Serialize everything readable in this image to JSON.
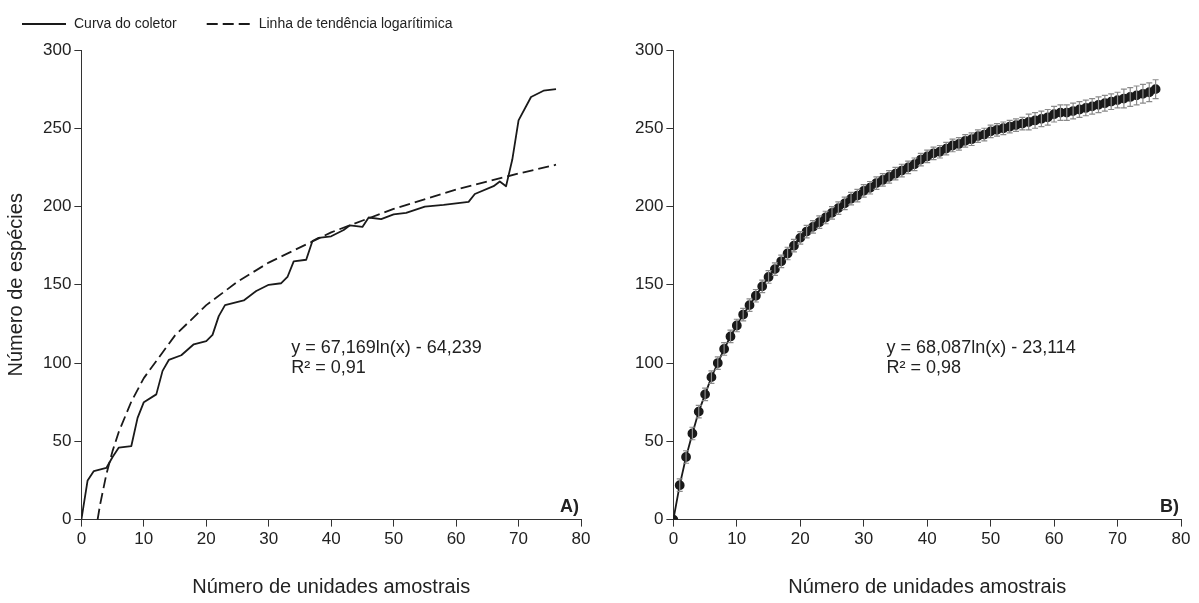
{
  "chart_data": [
    {
      "type": "line",
      "xlabel": "Número de unidades amostrais",
      "ylabel": "Número de espécies",
      "xlim": [
        0,
        80
      ],
      "xticks": [
        0,
        10,
        20,
        30,
        40,
        50,
        60,
        70,
        80
      ],
      "ylim": [
        0,
        300
      ],
      "yticks": [
        0,
        50,
        100,
        150,
        200,
        250,
        300
      ],
      "grid": false,
      "legend": "top",
      "marker": "none",
      "annotations": [
        "y = 67,169ln(x) - 64,239",
        "R² = 0,91",
        "A)"
      ],
      "series": [
        {
          "name": "Curva do coletor",
          "color": "#1a1a1a",
          "line_style": "solid",
          "x": [
            0,
            1,
            2,
            4,
            5,
            6,
            8,
            9,
            10,
            12,
            13,
            14,
            16,
            18,
            20,
            21,
            22,
            23,
            26,
            28,
            30,
            32,
            33,
            34,
            36,
            37,
            38,
            40,
            42,
            43,
            45,
            46,
            48,
            50,
            52,
            55,
            58,
            62,
            63,
            66,
            67,
            68,
            69,
            70,
            72,
            74,
            76
          ],
          "values": [
            0,
            25,
            31,
            33,
            40,
            46,
            47,
            65,
            75,
            80,
            95,
            102,
            105,
            112,
            114,
            118,
            130,
            137,
            140,
            146,
            150,
            151,
            155,
            165,
            166,
            178,
            180,
            181,
            185,
            188,
            187,
            193,
            192,
            195,
            196,
            200,
            201,
            203,
            208,
            213,
            216,
            213,
            230,
            255,
            270,
            274,
            275
          ]
        },
        {
          "name": "Linha de tendência logarítimica",
          "color": "#1a1a1a",
          "type": "line",
          "line_style": "dashed",
          "x": [
            2.6,
            3,
            4,
            5,
            6,
            8,
            10,
            15,
            20,
            25,
            30,
            40,
            50,
            60,
            70,
            76
          ],
          "values": [
            0,
            9.6,
            28.9,
            43.9,
            56.1,
            75.4,
            90.4,
            117.7,
            137,
            152,
            164.2,
            183.5,
            198.5,
            210.8,
            221.1,
            226.7
          ]
        }
      ]
    },
    {
      "type": "line",
      "xlabel": "Número de unidades amostrais",
      "xlim": [
        0,
        80
      ],
      "xticks": [
        0,
        10,
        20,
        30,
        40,
        50,
        60,
        70,
        80
      ],
      "ylim": [
        0,
        300
      ],
      "yticks": [
        0,
        50,
        100,
        150,
        200,
        250,
        300
      ],
      "grid": false,
      "legend": false,
      "marker": "circle",
      "annotations": [
        "y = 68,087ln(x) - 23,114",
        "R² = 0,98",
        "B)"
      ],
      "series": [
        {
          "color": "#1a1a1a",
          "line_style": "solid",
          "x": [
            0,
            1,
            2,
            3,
            4,
            5,
            6,
            7,
            8,
            9,
            10,
            11,
            12,
            13,
            14,
            15,
            16,
            17,
            18,
            19,
            20,
            21,
            22,
            23,
            24,
            25,
            26,
            27,
            28,
            29,
            30,
            31,
            32,
            33,
            34,
            35,
            36,
            37,
            38,
            39,
            40,
            41,
            42,
            43,
            44,
            45,
            46,
            47,
            48,
            49,
            50,
            51,
            52,
            53,
            54,
            55,
            56,
            57,
            58,
            59,
            60,
            61,
            62,
            63,
            64,
            65,
            66,
            67,
            68,
            69,
            70,
            71,
            72,
            73,
            74,
            75,
            76
          ],
          "values": [
            0,
            22,
            40,
            55,
            69,
            80,
            91,
            100,
            109,
            117,
            124,
            131,
            137,
            143,
            149,
            155,
            160,
            165,
            170,
            175,
            180,
            184,
            187,
            190,
            193,
            196,
            199,
            202,
            205,
            207,
            210,
            212,
            215,
            217,
            219,
            221,
            223,
            225,
            227,
            230,
            232,
            234,
            235,
            237,
            239,
            240,
            242,
            243,
            245,
            246,
            248,
            249,
            250,
            251,
            252,
            253,
            254,
            255,
            256,
            257,
            259,
            260,
            260,
            261,
            262,
            263,
            264,
            265,
            266,
            267,
            268,
            269,
            270,
            271,
            272,
            273,
            275
          ],
          "errors": [
            null,
            4,
            4,
            4,
            4,
            4,
            4,
            4,
            4,
            4,
            4,
            4,
            4,
            4,
            4,
            4,
            4,
            4,
            4,
            4,
            4,
            4,
            4,
            4,
            4,
            4,
            4,
            4,
            4,
            4,
            4,
            4,
            4,
            4,
            4,
            4,
            4,
            4,
            4,
            4,
            4,
            4,
            4,
            4,
            4,
            4,
            4,
            4,
            4,
            4,
            4,
            4,
            4,
            4,
            4,
            4,
            5,
            5,
            5,
            5,
            5,
            5,
            5,
            5,
            5,
            5,
            5,
            5,
            5,
            5,
            5,
            6,
            6,
            6,
            6,
            6,
            6
          ]
        }
      ]
    }
  ]
}
